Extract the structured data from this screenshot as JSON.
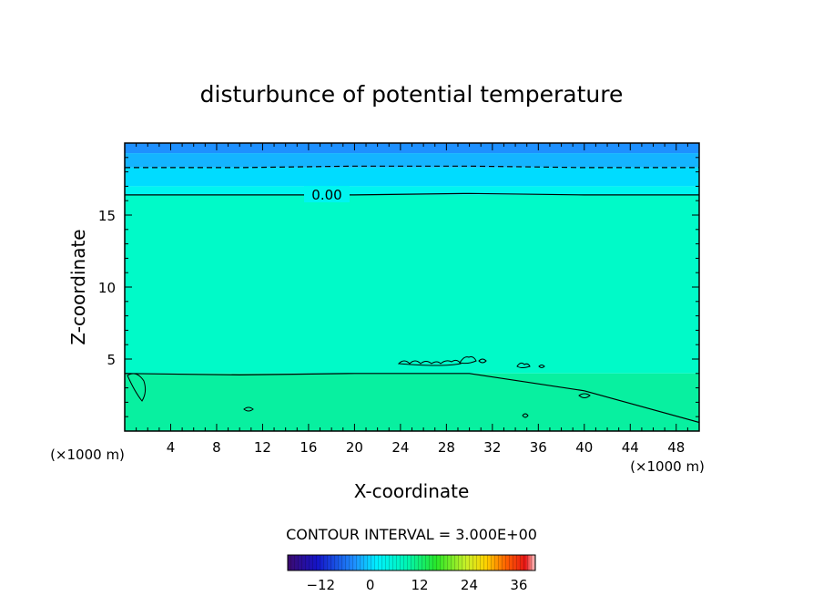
{
  "chart_data": {
    "type": "heatmap",
    "title": "disturbunce of potential temperature",
    "xlabel": "X-coordinate",
    "ylabel": "Z-coordinate",
    "x_unit_left": "(×1000 m)",
    "x_unit_right": "(×1000 m)",
    "xlim": [
      0,
      50
    ],
    "ylim": [
      0,
      20
    ],
    "x_ticks": [
      4,
      8,
      12,
      16,
      20,
      24,
      28,
      32,
      36,
      40,
      44,
      48
    ],
    "y_ticks": [
      5,
      10,
      15
    ],
    "contour_label": "0.00",
    "contour_interval_text": "CONTOUR INTERVAL = 3.000E+00",
    "contour_interval": 3.0,
    "colorbar_ticks": [
      -12,
      0,
      12,
      24,
      36
    ],
    "colorbar_range": [
      -20,
      40
    ],
    "field_bands": [
      {
        "z_from": 19.3,
        "z_to": 20.0,
        "color": "#1e90ff"
      },
      {
        "z_from": 18.3,
        "z_to": 19.3,
        "color": "#14b4ff"
      },
      {
        "z_from": 17.0,
        "z_to": 18.3,
        "color": "#00dcff"
      },
      {
        "z_from": 16.4,
        "z_to": 17.0,
        "color": "#00f5f0"
      },
      {
        "z_from": 4.0,
        "z_to": 16.4,
        "color": "#00fac8"
      },
      {
        "z_from": 0.0,
        "z_to": 4.0,
        "color": "#08f0a0"
      }
    ],
    "contour_lines": [
      {
        "value": 0.0,
        "style": "solid",
        "z": [
          16.4,
          16.4,
          16.4,
          16.5,
          16.4,
          16.4
        ]
      },
      {
        "value": -3.0,
        "style": "dashed",
        "z": [
          18.3,
          18.3,
          18.4,
          18.4,
          18.3,
          18.3
        ]
      },
      {
        "value": 3.0,
        "style": "solid",
        "z": [
          4.0,
          3.9,
          4.0,
          4.0,
          2.8,
          0.6
        ]
      }
    ]
  }
}
